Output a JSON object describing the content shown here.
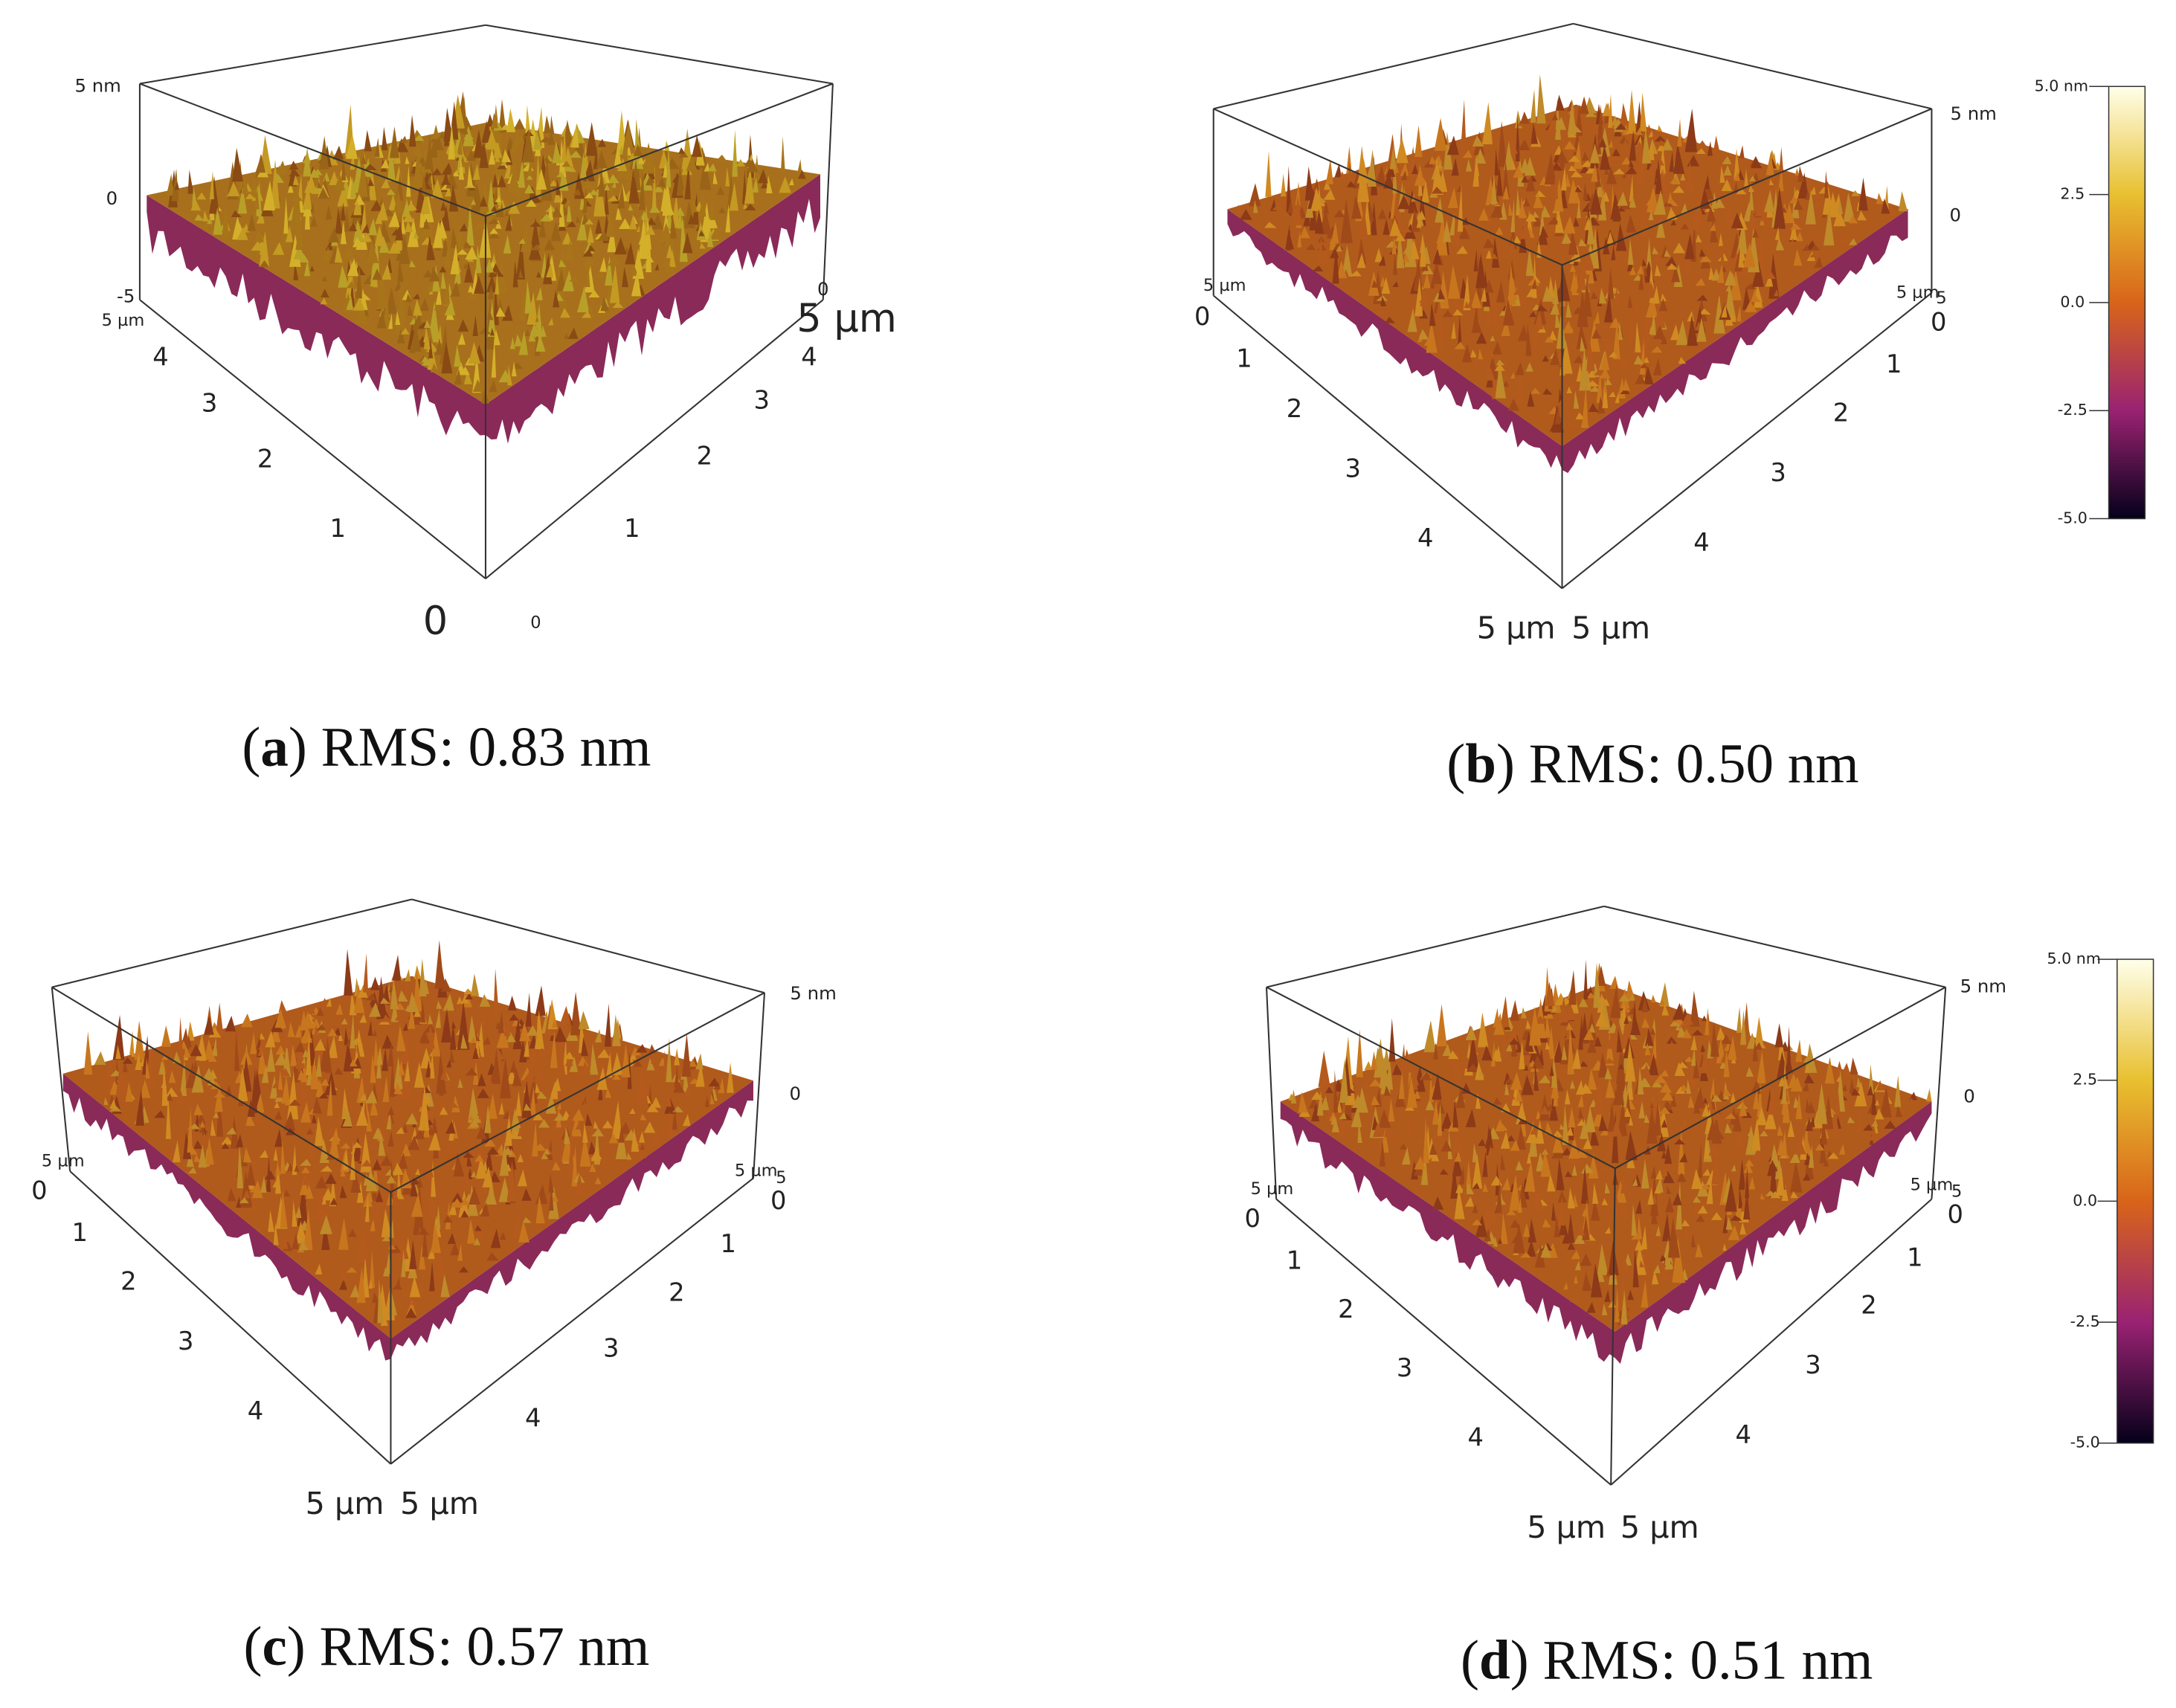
{
  "panels": [
    {
      "caption": {
        "open": "(",
        "letter": "a",
        "text": ") RMS: 0.83 nm"
      },
      "z_labels": [
        "5 nm",
        "0",
        "-5",
        "0"
      ],
      "left_axis_labels": [
        "5 µm",
        "4",
        "3",
        "2",
        "1",
        "0"
      ],
      "right_axis_labels": [
        "0",
        "1",
        "2",
        "3",
        "4",
        "5 µm"
      ]
    },
    {
      "caption": {
        "open": "(",
        "letter": "b",
        "text": ") RMS: 0.50 nm"
      },
      "z_labels": [
        "5 nm",
        "0"
      ],
      "left_axis_labels": [
        "5 µm",
        "0",
        "1",
        "2",
        "3",
        "4",
        "5 µm"
      ],
      "right_axis_labels": [
        "5 µm",
        "5",
        "0",
        "1",
        "2",
        "3",
        "4",
        "5 µm"
      ]
    },
    {
      "caption": {
        "open": "(",
        "letter": "c",
        "text": ") RMS: 0.57 nm"
      },
      "z_labels": [
        "5 nm",
        "0"
      ],
      "left_axis_labels": [
        "5 µm",
        "0",
        "1",
        "2",
        "3",
        "4",
        "5 µm"
      ],
      "right_axis_labels": [
        "5 µm",
        "5",
        "0",
        "1",
        "2",
        "3",
        "4",
        "5 µm"
      ]
    },
    {
      "caption": {
        "open": "(",
        "letter": "d",
        "text": ") RMS: 0.51 nm"
      },
      "z_labels": [
        "5 nm",
        "0"
      ],
      "left_axis_labels": [
        "5 µm",
        "0",
        "1",
        "2",
        "3",
        "4",
        "5 µm"
      ],
      "right_axis_labels": [
        "5 µm",
        "5",
        "0",
        "1",
        "2",
        "3",
        "4",
        "5 µm"
      ]
    }
  ],
  "colorbars": [
    {
      "labels": [
        "5.0 nm",
        "2.5",
        "0.0",
        "-2.5",
        "-5.0"
      ]
    },
    {
      "labels": [
        "5.0 nm",
        "2.5",
        "0.0",
        "-2.5",
        "-5.0"
      ]
    }
  ]
}
